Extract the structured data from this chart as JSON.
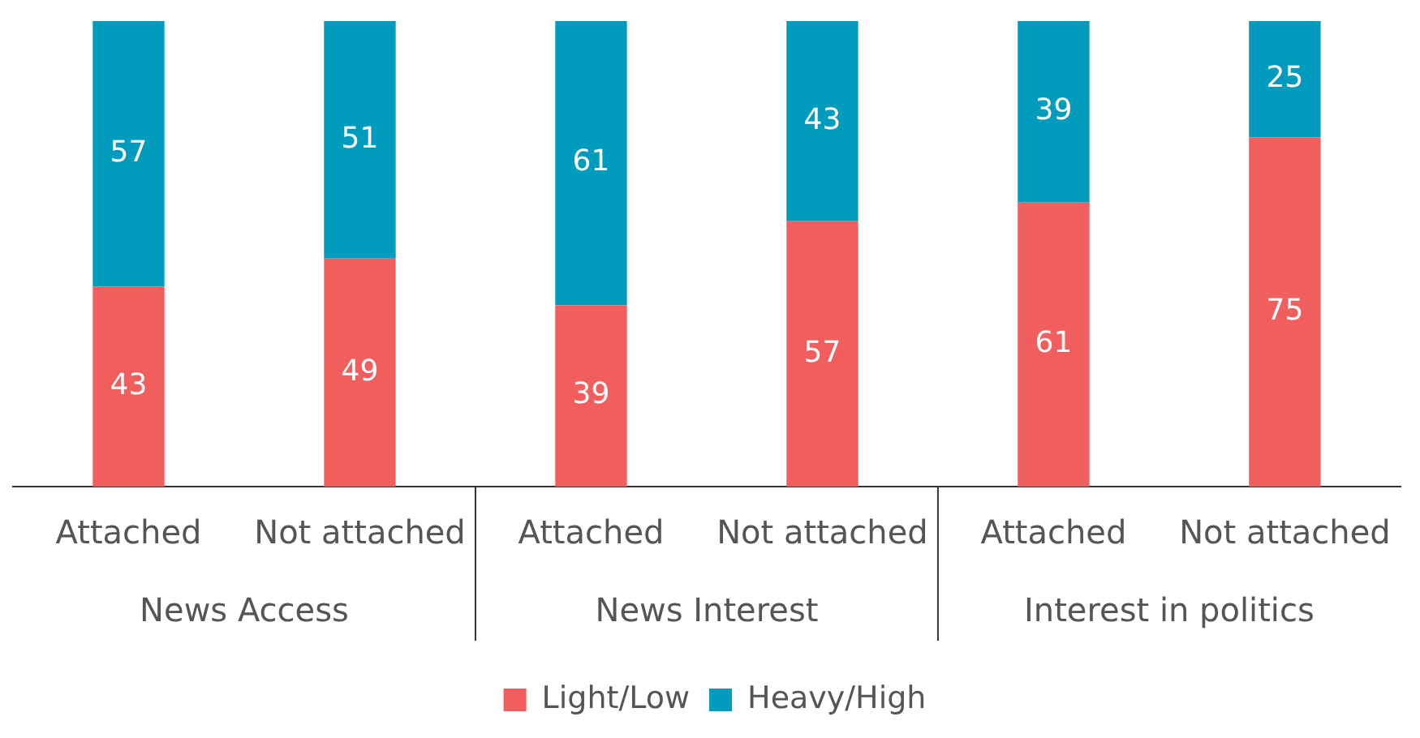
{
  "chart_data": {
    "type": "bar",
    "stacked": true,
    "categories": [
      "Attached",
      "Not attached",
      "Attached",
      "Not attached",
      "Attached",
      "Not attached"
    ],
    "series": [
      {
        "name": "Light/Low",
        "color": "#f05f5d",
        "values": [
          43,
          49,
          39,
          57,
          61,
          75
        ]
      },
      {
        "name": "Heavy/High",
        "color": "#009bbd",
        "values": [
          57,
          51,
          61,
          43,
          39,
          25
        ]
      }
    ],
    "ylim": [
      0,
      100
    ],
    "data_labels": true,
    "legend": "bottom",
    "grid": false,
    "tick_labels": "x",
    "annotations": [
      "News Access",
      "News Interest",
      "Interest in politics"
    ]
  }
}
